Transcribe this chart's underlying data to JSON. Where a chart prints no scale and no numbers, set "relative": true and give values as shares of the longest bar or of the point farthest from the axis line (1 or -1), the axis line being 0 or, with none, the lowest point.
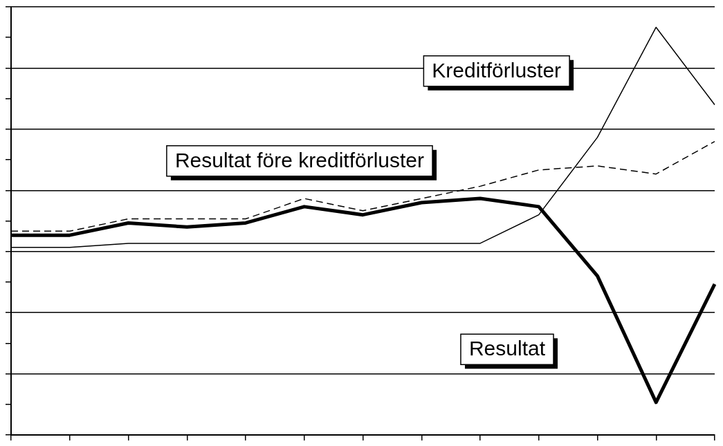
{
  "chart_data": {
    "type": "line",
    "relative": true,
    "categories": [
      null,
      null,
      null,
      null,
      null,
      null,
      null,
      null,
      null,
      null,
      null,
      null,
      null
    ],
    "grid": "y",
    "legend": false,
    "marker": "none",
    "series": [
      {
        "name": "Resultat",
        "color": "#000000",
        "line_style": "solid",
        "values": [
          0.49,
          0.49,
          0.52,
          0.51,
          0.52,
          0.56,
          0.54,
          0.57,
          0.58,
          0.56,
          0.39,
          0.08,
          0.37
        ]
      },
      {
        "name": "Resultat före kreditförluster",
        "color": "#000000",
        "line_style": "dashed",
        "values": [
          0.5,
          0.5,
          0.53,
          0.53,
          0.53,
          0.58,
          0.55,
          0.58,
          0.61,
          0.65,
          0.66,
          0.64,
          0.72
        ]
      },
      {
        "name": "Kreditförluster",
        "color": "#000000",
        "line_style": "solid",
        "values": [
          0.46,
          0.46,
          0.47,
          0.47,
          0.47,
          0.47,
          0.47,
          0.47,
          0.47,
          0.54,
          0.73,
          1.0,
          0.81
        ]
      }
    ]
  }
}
